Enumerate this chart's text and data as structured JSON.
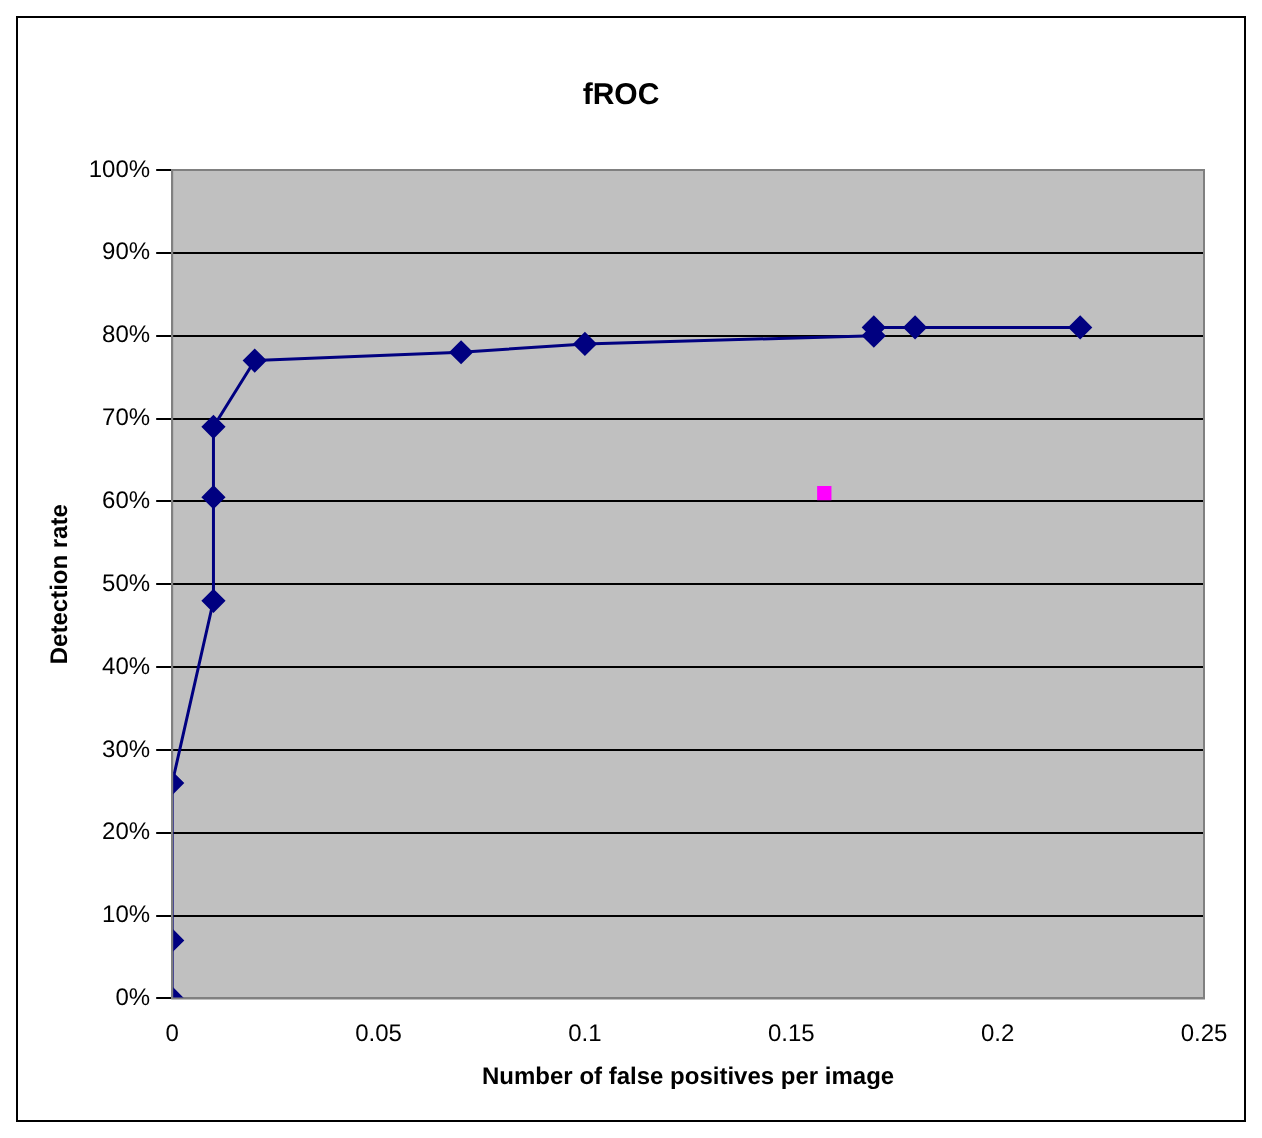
{
  "chart_data": {
    "type": "line",
    "title": "fROC",
    "xlabel": "Number of false positives per image",
    "ylabel": "Detection rate",
    "xlim": [
      0,
      0.25
    ],
    "xticks": [
      0,
      0.05,
      0.1,
      0.15,
      0.2,
      0.25
    ],
    "ylim": [
      0,
      100
    ],
    "yticks": [
      {
        "value": 0,
        "label": "0%"
      },
      {
        "value": 10,
        "label": "10%"
      },
      {
        "value": 20,
        "label": "20%"
      },
      {
        "value": 30,
        "label": "30%"
      },
      {
        "value": 40,
        "label": "40%"
      },
      {
        "value": 50,
        "label": "50%"
      },
      {
        "value": 60,
        "label": "60%"
      },
      {
        "value": 70,
        "label": "70%"
      },
      {
        "value": 80,
        "label": "80%"
      },
      {
        "value": 90,
        "label": "90%"
      },
      {
        "value": 100,
        "label": "100%"
      }
    ],
    "grid": "y",
    "legend": false,
    "series": [
      {
        "color": "#000080",
        "marker": "diamond",
        "x": [
          0,
          0,
          0,
          0.01,
          0.01,
          0.01,
          0.02,
          0.07,
          0.1,
          0.17,
          0.17,
          0.18,
          0.22
        ],
        "values": [
          0,
          7,
          26,
          48,
          60.5,
          69,
          77,
          78,
          79,
          80,
          81,
          81,
          81
        ]
      },
      {
        "type": "scatter",
        "color": "#ff00ff",
        "marker": "square",
        "x": [
          0.158
        ],
        "values": [
          61
        ]
      }
    ]
  }
}
